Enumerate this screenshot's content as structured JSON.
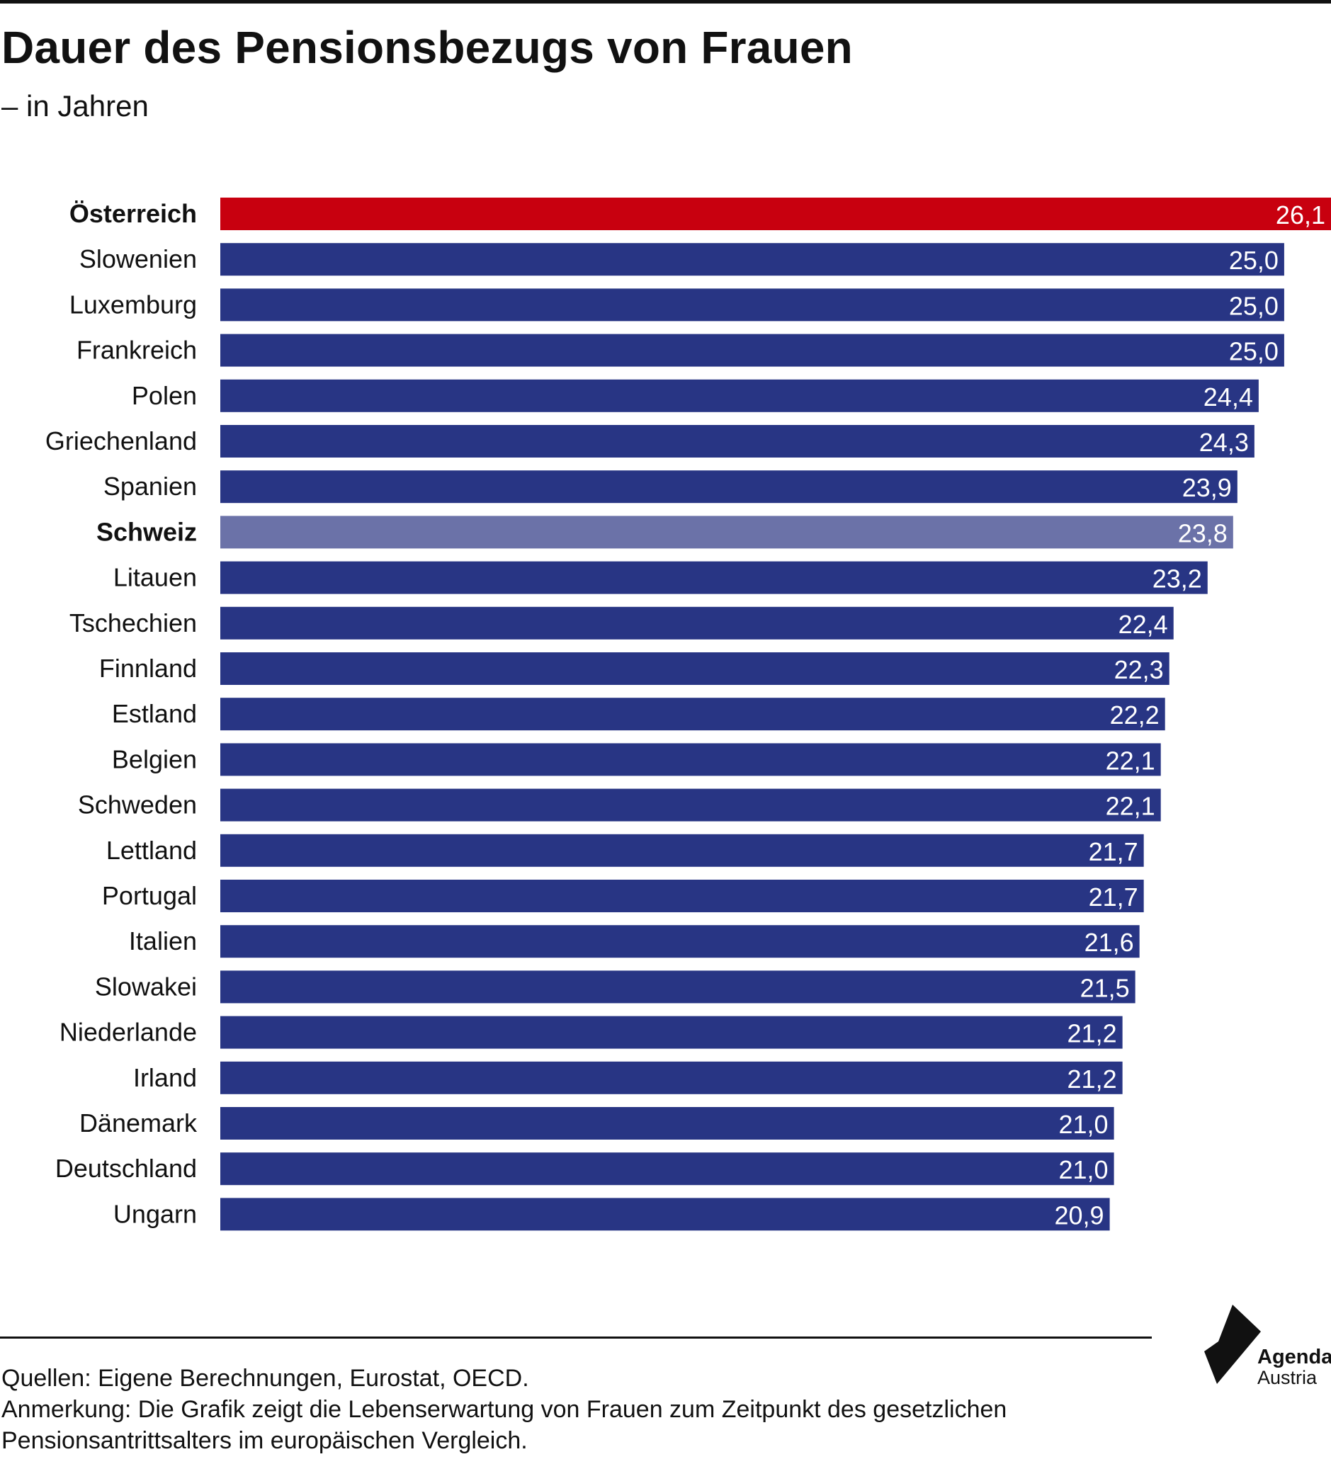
{
  "title": "Dauer des Pensionsbezugs von Frauen",
  "subtitle": "– in Jahren",
  "colors": {
    "default_bar": "#283584",
    "highlight_austria": "#c8000f",
    "highlight_switzerland": "#6b72a8",
    "value_label": "#ffffff",
    "text": "#111111"
  },
  "chart_data": {
    "type": "bar",
    "orientation": "horizontal",
    "categories": [
      "Österreich",
      "Slowenien",
      "Luxemburg",
      "Frankreich",
      "Polen",
      "Griechenland",
      "Spanien",
      "Schweiz",
      "Litauen",
      "Tschechien",
      "Finnland",
      "Estland",
      "Belgien",
      "Schweden",
      "Lettland",
      "Portugal",
      "Italien",
      "Slowakei",
      "Niederlande",
      "Irland",
      "Dänemark",
      "Deutschland",
      "Ungarn"
    ],
    "values": [
      26.1,
      25.0,
      25.0,
      25.0,
      24.4,
      24.3,
      23.9,
      23.8,
      23.2,
      22.4,
      22.3,
      22.2,
      22.1,
      22.1,
      21.7,
      21.7,
      21.6,
      21.5,
      21.2,
      21.2,
      21.0,
      21.0,
      20.9
    ],
    "value_labels": [
      "26,1",
      "25,0",
      "25,0",
      "25,0",
      "24,4",
      "24,3",
      "23,9",
      "23,8",
      "23,2",
      "22,4",
      "22,3",
      "22,2",
      "22,1",
      "22,1",
      "21,7",
      "21,7",
      "21,6",
      "21,5",
      "21,2",
      "21,2",
      "21,0",
      "21,0",
      "20,9"
    ],
    "highlighted": {
      "Österreich": "highlight_austria",
      "Schweiz": "highlight_switzerland"
    },
    "bold_categories": [
      "Österreich",
      "Schweiz"
    ],
    "xlim": [
      0,
      26.1
    ],
    "xlabel": "",
    "ylabel": "",
    "grid": false,
    "legend": "none"
  },
  "footnotes": {
    "sources": "Quellen: Eigene Berechnungen, Eurostat, OECD.",
    "note_line1": "Anmerkung: Die Grafik zeigt die Lebenserwartung von Frauen zum Zeitpunkt des gesetzlichen",
    "note_line2": "Pensionsantrittsalters im europäischen Vergleich."
  },
  "logo": {
    "line1": "Agenda",
    "line2": "Austria",
    "icon": "agenda-austria-logo-icon"
  }
}
